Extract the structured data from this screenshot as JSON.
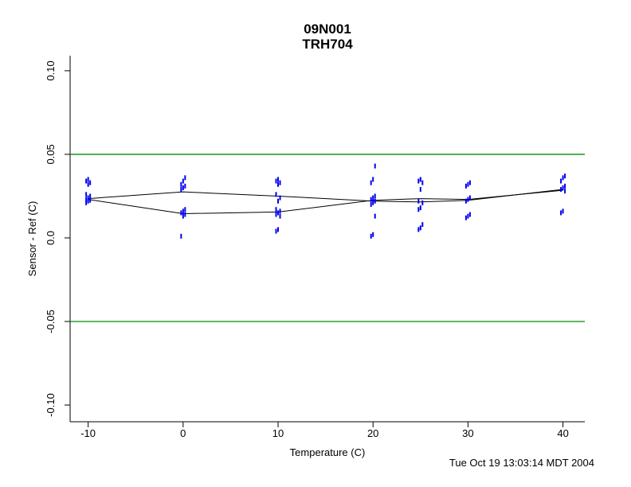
{
  "footer": {
    "timestamp": "Tue Oct 19 13:03:14 MDT 2004"
  },
  "chart_data": {
    "type": "scatter",
    "title": "09N001",
    "subtitle": "TRH704",
    "xlabel": "Temperature (C)",
    "ylabel": "Sensor - Ref (C)",
    "xlim": [
      -11.9,
      42.3
    ],
    "ylim": [
      -0.11,
      0.109
    ],
    "x_ticks": [
      -10,
      0,
      10,
      20,
      30,
      40
    ],
    "x_tick_labels": [
      "-10",
      "0",
      "10",
      "20",
      "30",
      "40"
    ],
    "y_ticks": [
      0.1,
      0.05,
      0.0,
      -0.05,
      -0.1
    ],
    "y_tick_labels": [
      "0.10",
      "0.05",
      "0.0",
      "-0.05",
      "-0.10"
    ],
    "grid": false,
    "legend": null,
    "reference_lines": {
      "values": [
        0.05,
        -0.05
      ],
      "color": "#008b00"
    },
    "point_color": "#0000ee",
    "line_color": "#000000",
    "clusters": [
      {
        "x": -10,
        "y": [
          0.021,
          0.022,
          0.0225,
          0.023,
          0.024,
          0.025,
          0.026,
          0.032,
          0.033,
          0.034,
          0.035
        ]
      },
      {
        "x": 0,
        "y": [
          0.001,
          0.013,
          0.014,
          0.015,
          0.016,
          0.017,
          0.029,
          0.03,
          0.031,
          0.032,
          0.034,
          0.036
        ]
      },
      {
        "x": 10,
        "y": [
          0.004,
          0.005,
          0.013,
          0.014,
          0.015,
          0.016,
          0.017,
          0.022,
          0.024,
          0.026,
          0.032,
          0.033,
          0.034,
          0.035
        ]
      },
      {
        "x": 20,
        "y": [
          0.001,
          0.002,
          0.013,
          0.02,
          0.021,
          0.022,
          0.023,
          0.024,
          0.025,
          0.033,
          0.035,
          0.043
        ]
      },
      {
        "x": 25,
        "y": [
          0.005,
          0.006,
          0.008,
          0.017,
          0.018,
          0.021,
          0.022,
          0.029,
          0.033,
          0.034,
          0.035
        ]
      },
      {
        "x": 30,
        "y": [
          0.012,
          0.013,
          0.014,
          0.022,
          0.023,
          0.024,
          0.031,
          0.032,
          0.033
        ]
      },
      {
        "x": 40,
        "y": [
          0.015,
          0.016,
          0.028,
          0.029,
          0.03,
          0.031,
          0.034,
          0.036,
          0.037
        ]
      }
    ],
    "lines": [
      {
        "name": "mean-curve-upper",
        "x": [
          -10,
          0,
          10,
          20,
          25,
          30,
          40
        ],
        "y": [
          0.0235,
          0.0275,
          0.025,
          0.022,
          0.0215,
          0.0225,
          0.029
        ]
      },
      {
        "name": "mean-curve-lower",
        "x": [
          -10,
          0,
          10,
          20,
          25,
          30,
          40
        ],
        "y": [
          0.023,
          0.0145,
          0.0155,
          0.0225,
          0.0235,
          0.023,
          0.0285
        ]
      }
    ]
  }
}
